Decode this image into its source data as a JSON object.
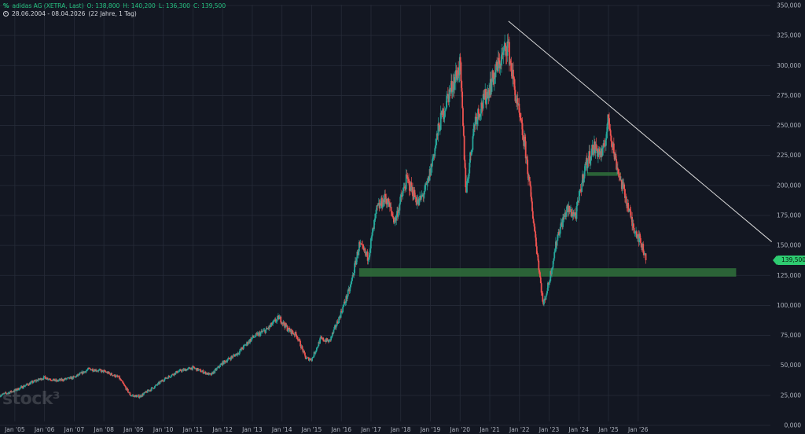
{
  "header": {
    "title": "adidas AG (XETRA, Last)",
    "open": "O: 138,800",
    "high": "H: 140,200",
    "low": "L: 136,300",
    "close": "C: 139,500",
    "range": "28.06.2004 - 08.04.2026",
    "duration": "(22 Jahre, 1 Tag)",
    "logo_icon": "stock3-logo-icon"
  },
  "watermark": "stock³",
  "last_price_label": "139,500",
  "colors": {
    "background": "#131722",
    "grid": "#262b38",
    "up": "#26a69a",
    "down": "#ef5350",
    "support_zone": "#2f6b3a",
    "trendline": "#d9d9d9",
    "price_badge": "#2ecc71"
  },
  "chart_data": {
    "type": "candlestick",
    "x_ticks": [
      "Jan '05",
      "Jan '06",
      "Jan '07",
      "Jan '08",
      "Jan '09",
      "Jan '10",
      "Jan '11",
      "Jan '12",
      "Jan '13",
      "Jan '14",
      "Jan '15",
      "Jan '16",
      "Jan '17",
      "Jan '18",
      "Jan '19",
      "Jan '20",
      "Jan '21",
      "Jan '22",
      "Jan '23",
      "Jan '24",
      "Jan '25",
      "Jan '26"
    ],
    "y_ticks": [
      "0,000",
      "25,000",
      "50,000",
      "75,000",
      "100,000",
      "125,000",
      "150,000",
      "175,000",
      "200,000",
      "225,000",
      "250,000",
      "275,000",
      "300,000",
      "325,000",
      "350,000"
    ],
    "ylim": [
      0,
      350
    ],
    "xlim": [
      2004.5,
      2026.27
    ],
    "price_path": [
      [
        2004.5,
        25
      ],
      [
        2005.0,
        29
      ],
      [
        2005.5,
        35
      ],
      [
        2006.0,
        40
      ],
      [
        2006.4,
        37
      ],
      [
        2007.0,
        40
      ],
      [
        2007.5,
        47
      ],
      [
        2008.0,
        45
      ],
      [
        2008.5,
        40
      ],
      [
        2008.9,
        25
      ],
      [
        2009.2,
        24
      ],
      [
        2009.7,
        32
      ],
      [
        2010.0,
        38
      ],
      [
        2010.5,
        45
      ],
      [
        2011.0,
        48
      ],
      [
        2011.6,
        42
      ],
      [
        2012.0,
        52
      ],
      [
        2012.5,
        60
      ],
      [
        2013.0,
        73
      ],
      [
        2013.5,
        80
      ],
      [
        2013.9,
        90
      ],
      [
        2014.2,
        80
      ],
      [
        2014.5,
        75
      ],
      [
        2014.8,
        56
      ],
      [
        2015.0,
        55
      ],
      [
        2015.3,
        72
      ],
      [
        2015.6,
        70
      ],
      [
        2015.9,
        88
      ],
      [
        2016.3,
        115
      ],
      [
        2016.6,
        150
      ],
      [
        2016.9,
        140
      ],
      [
        2017.2,
        180
      ],
      [
        2017.5,
        190
      ],
      [
        2017.8,
        170
      ],
      [
        2018.2,
        205
      ],
      [
        2018.6,
        185
      ],
      [
        2018.9,
        200
      ],
      [
        2019.3,
        250
      ],
      [
        2019.6,
        275
      ],
      [
        2020.0,
        300
      ],
      [
        2020.2,
        195
      ],
      [
        2020.5,
        255
      ],
      [
        2020.8,
        270
      ],
      [
        2021.2,
        295
      ],
      [
        2021.6,
        318
      ],
      [
        2021.9,
        270
      ],
      [
        2022.2,
        230
      ],
      [
        2022.5,
        165
      ],
      [
        2022.8,
        100
      ],
      [
        2023.0,
        120
      ],
      [
        2023.3,
        160
      ],
      [
        2023.6,
        180
      ],
      [
        2023.9,
        175
      ],
      [
        2024.2,
        215
      ],
      [
        2024.5,
        232
      ],
      [
        2024.8,
        225
      ],
      [
        2025.0,
        255
      ],
      [
        2025.2,
        225
      ],
      [
        2025.4,
        205
      ],
      [
        2025.6,
        188
      ],
      [
        2025.8,
        168
      ],
      [
        2026.0,
        158
      ],
      [
        2026.27,
        139.5
      ]
    ],
    "last_price": 139.5,
    "support_zone": {
      "x0": 2016.6,
      "x1": 2029.3,
      "y0": 124,
      "y1": 131
    },
    "secondary_zone": {
      "x0": 2024.27,
      "x1": 2025.42,
      "y0": 208,
      "y1": 211
    },
    "trendline": {
      "x0": 2021.63,
      "y0": 337,
      "x1": 2030.5,
      "y1": 153
    },
    "grid": true,
    "legend": "top-left"
  }
}
